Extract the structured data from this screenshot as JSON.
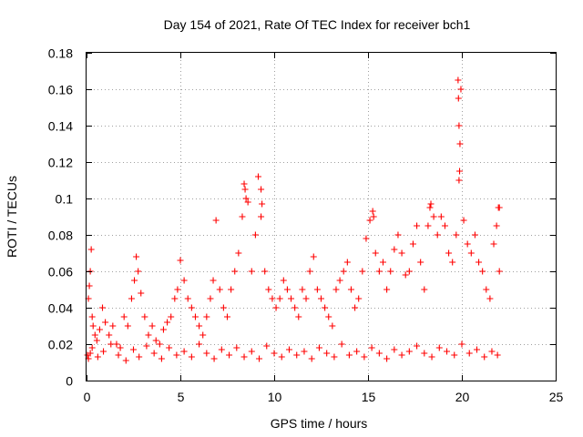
{
  "chart_data": {
    "type": "scatter",
    "title": "Day 154 of 2021, Rate Of TEC Index for receiver bch1",
    "xlabel": "GPS time / hours",
    "ylabel": "ROTI / TECUs",
    "xlim": [
      0,
      25
    ],
    "ylim": [
      0,
      0.18
    ],
    "xticks": [
      0,
      5,
      10,
      15,
      20,
      25
    ],
    "yticks": [
      0,
      0.02,
      0.04,
      0.06,
      0.08,
      0.1,
      0.12,
      0.14,
      0.16,
      0.18
    ],
    "xtick_labels": [
      "0",
      "5",
      "10",
      "15",
      "20",
      "25"
    ],
    "ytick_labels": [
      "0",
      "0.02",
      "0.04",
      "0.06",
      "0.08",
      "0.1",
      "0.12",
      "0.14",
      "0.16",
      "0.18"
    ],
    "grid": true,
    "marker": "+",
    "color": "#ff0000",
    "series": [
      {
        "name": "bch1",
        "x": [
          0.05,
          0.1,
          0.15,
          0.2,
          0.25,
          0.3,
          0.35,
          0.45,
          0.55,
          0.7,
          0.85,
          1.0,
          1.2,
          1.4,
          1.6,
          1.8,
          2.0,
          2.2,
          2.4,
          2.55,
          2.65,
          2.75,
          2.9,
          3.1,
          3.3,
          3.5,
          3.7,
          3.9,
          4.1,
          4.3,
          4.5,
          4.7,
          4.85,
          5.0,
          5.2,
          5.4,
          5.6,
          5.8,
          6.0,
          6.2,
          6.4,
          6.6,
          6.75,
          6.9,
          7.1,
          7.3,
          7.5,
          7.7,
          7.9,
          8.1,
          8.3,
          8.45,
          8.6,
          8.8,
          9.0,
          9.15,
          9.3,
          9.5,
          9.7,
          9.9,
          10.1,
          10.3,
          10.5,
          10.7,
          10.9,
          11.1,
          11.3,
          11.5,
          11.7,
          11.9,
          12.1,
          12.3,
          12.5,
          12.7,
          12.9,
          13.1,
          13.3,
          13.5,
          13.7,
          13.9,
          14.1,
          14.3,
          14.5,
          14.7,
          14.9,
          15.1,
          15.25,
          15.4,
          15.6,
          15.8,
          16.0,
          16.2,
          16.4,
          16.6,
          16.8,
          17.0,
          17.2,
          17.4,
          17.6,
          17.8,
          18.0,
          18.2,
          18.35,
          18.5,
          18.7,
          18.9,
          19.1,
          19.3,
          19.5,
          19.7,
          19.85,
          19.95,
          20.1,
          20.3,
          20.5,
          20.7,
          20.9,
          21.1,
          21.3,
          21.5,
          21.7,
          21.85,
          21.95,
          22.0,
          0.1,
          0.2,
          0.3,
          0.6,
          0.9,
          1.3,
          1.7,
          2.1,
          2.5,
          2.8,
          3.2,
          3.6,
          4.0,
          4.4,
          4.8,
          5.2,
          5.6,
          6.0,
          6.4,
          6.8,
          7.2,
          7.6,
          8.0,
          8.4,
          8.8,
          9.2,
          9.6,
          10.0,
          10.4,
          10.8,
          11.2,
          11.6,
          12.0,
          12.4,
          12.8,
          13.2,
          13.6,
          14.0,
          14.4,
          14.8,
          15.2,
          15.6,
          16.0,
          16.4,
          16.8,
          17.2,
          17.6,
          18.0,
          18.4,
          18.8,
          19.2,
          19.6,
          20.0,
          20.4,
          20.8,
          21.2,
          21.6,
          21.9,
          8.4,
          8.5,
          9.3,
          9.35,
          15.3,
          18.3,
          19.8,
          19.82,
          19.85,
          19.9,
          19.88,
          22.0
        ],
        "y": [
          0.014,
          0.045,
          0.052,
          0.06,
          0.072,
          0.035,
          0.03,
          0.025,
          0.022,
          0.028,
          0.04,
          0.032,
          0.025,
          0.03,
          0.02,
          0.018,
          0.035,
          0.03,
          0.045,
          0.055,
          0.068,
          0.06,
          0.048,
          0.035,
          0.025,
          0.03,
          0.022,
          0.02,
          0.028,
          0.032,
          0.035,
          0.045,
          0.05,
          0.066,
          0.055,
          0.045,
          0.04,
          0.035,
          0.03,
          0.025,
          0.035,
          0.045,
          0.055,
          0.088,
          0.05,
          0.04,
          0.035,
          0.05,
          0.06,
          0.07,
          0.09,
          0.105,
          0.098,
          0.06,
          0.08,
          0.112,
          0.09,
          0.06,
          0.05,
          0.045,
          0.04,
          0.045,
          0.055,
          0.05,
          0.045,
          0.04,
          0.035,
          0.05,
          0.045,
          0.06,
          0.068,
          0.05,
          0.045,
          0.04,
          0.035,
          0.03,
          0.05,
          0.055,
          0.06,
          0.065,
          0.05,
          0.04,
          0.045,
          0.06,
          0.078,
          0.088,
          0.093,
          0.07,
          0.06,
          0.065,
          0.05,
          0.06,
          0.072,
          0.08,
          0.07,
          0.058,
          0.06,
          0.075,
          0.085,
          0.065,
          0.05,
          0.085,
          0.097,
          0.09,
          0.08,
          0.09,
          0.085,
          0.07,
          0.065,
          0.08,
          0.11,
          0.16,
          0.088,
          0.075,
          0.07,
          0.08,
          0.065,
          0.06,
          0.05,
          0.045,
          0.075,
          0.085,
          0.095,
          0.06,
          0.012,
          0.015,
          0.018,
          0.013,
          0.016,
          0.02,
          0.014,
          0.011,
          0.017,
          0.013,
          0.019,
          0.015,
          0.012,
          0.018,
          0.014,
          0.016,
          0.013,
          0.02,
          0.015,
          0.012,
          0.017,
          0.014,
          0.018,
          0.013,
          0.016,
          0.012,
          0.019,
          0.015,
          0.013,
          0.017,
          0.014,
          0.016,
          0.012,
          0.018,
          0.015,
          0.013,
          0.02,
          0.014,
          0.016,
          0.013,
          0.018,
          0.015,
          0.012,
          0.017,
          0.014,
          0.016,
          0.019,
          0.015,
          0.013,
          0.018,
          0.016,
          0.014,
          0.02,
          0.015,
          0.017,
          0.013,
          0.016,
          0.014,
          0.108,
          0.1,
          0.105,
          0.097,
          0.09,
          0.095,
          0.165,
          0.155,
          0.14,
          0.13,
          0.115,
          0.095
        ]
      }
    ]
  }
}
